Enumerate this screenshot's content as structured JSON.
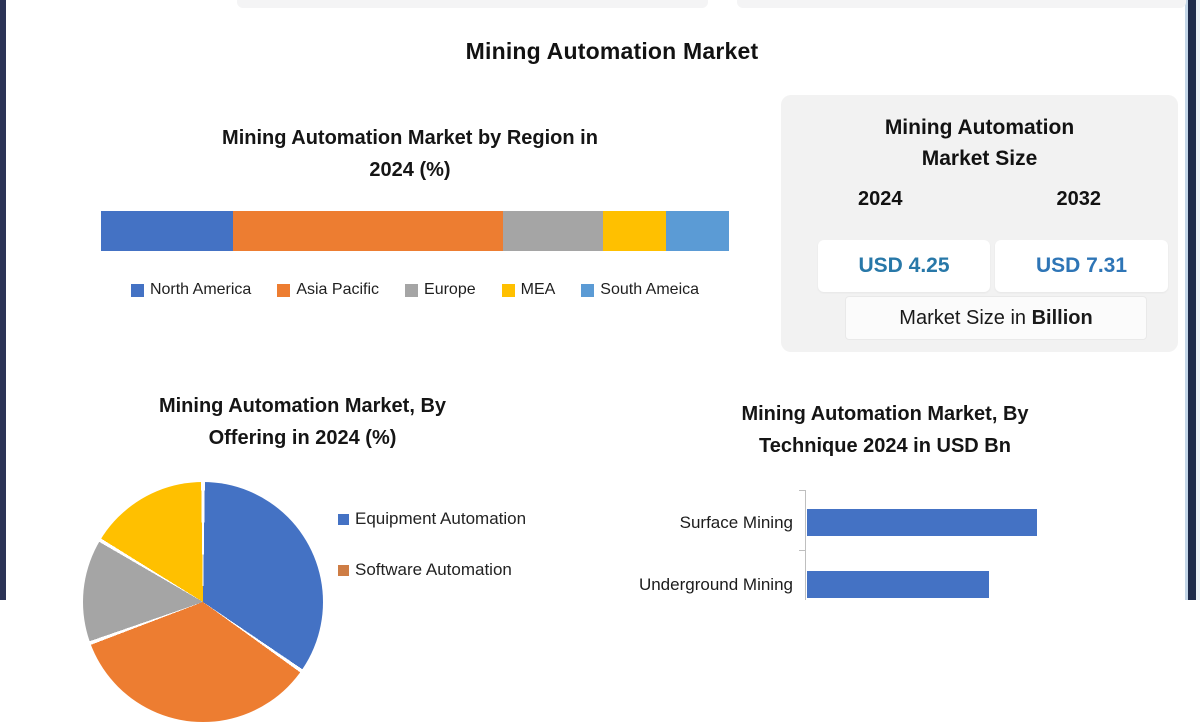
{
  "page": {
    "main_title": "Mining Automation Market"
  },
  "market_size_panel": {
    "title_line1": "Mining Automation",
    "title_line2": "Market Size",
    "year_left": "2024",
    "year_right": "2032",
    "value_left": "USD 4.25",
    "value_right": "USD 7.31",
    "value_left_color": "#2878A8",
    "value_right_color": "#2E75B6",
    "footnote_prefix": "Market Size in ",
    "footnote_bold": "Billion"
  },
  "chart_data": [
    {
      "id": "region_share",
      "type": "bar",
      "subtype": "stacked-horizontal-100pct",
      "title_line1": "Mining Automation Market by Region in",
      "title_line2": "2024 (%)",
      "categories": [
        "North America",
        "Asia Pacific",
        "Europe",
        "MEA",
        "South Ameica"
      ],
      "values": [
        21,
        43,
        16,
        10,
        10
      ],
      "colors": [
        "#4472C4",
        "#ED7D31",
        "#A5A5A5",
        "#FFC000",
        "#5B9BD5"
      ],
      "legend_position": "bottom",
      "axes_visible": false
    },
    {
      "id": "offering_share",
      "type": "pie",
      "title_line1": "Mining Automation Market, By",
      "title_line2": "Offering in 2024 (%)",
      "slices": [
        {
          "label": "Equipment Automation",
          "color": "#4472C4",
          "start_deg": 0,
          "end_deg": 125,
          "approx_pct": 35
        },
        {
          "label": "Software Automation",
          "color": "#ED7D31",
          "start_deg": 125,
          "end_deg": 250,
          "approx_pct": 35
        },
        {
          "label": "unlabeled-gray",
          "color": "#A5A5A5",
          "start_deg": 250,
          "end_deg": 301,
          "approx_pct": 14
        },
        {
          "label": "unlabeled-yellow",
          "color": "#FFC000",
          "start_deg": 301,
          "end_deg": 360,
          "approx_pct": 16
        }
      ],
      "legend": [
        {
          "label": "Equipment Automation",
          "color": "#4472C4"
        },
        {
          "label": "Software Automation",
          "color": "#CE7D45"
        }
      ],
      "legend_position": "right"
    },
    {
      "id": "technique_market",
      "type": "bar",
      "subtype": "horizontal",
      "title_line1": "Mining Automation Market, By",
      "title_line2": "Technique 2024 in USD Bn",
      "categories": [
        "Surface Mining",
        "Underground Mining"
      ],
      "values": [
        2.4,
        1.9
      ],
      "axis_max": 4,
      "bar_color": "#4472C4",
      "grid": false
    }
  ]
}
